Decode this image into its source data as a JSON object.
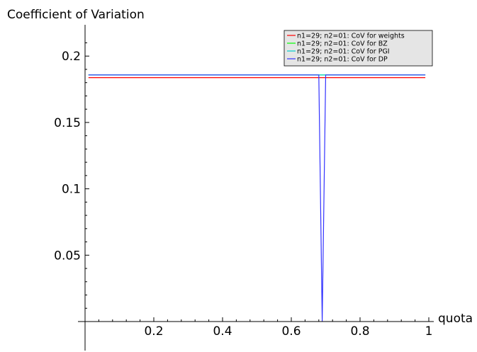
{
  "chart_data": {
    "type": "line",
    "title": "Coefficient of Variation",
    "ylabel": "Coefficient of Variation",
    "xlabel": "quota",
    "xlim": [
      0.0,
      1.0
    ],
    "ylim": [
      0.0,
      0.22
    ],
    "x_ticks": [
      0.2,
      0.4,
      0.6,
      0.8,
      1.0
    ],
    "x_tick_labels": [
      "0.2",
      "0.4",
      "0.6",
      "0.8",
      "1"
    ],
    "y_ticks": [
      0.05,
      0.1,
      0.15,
      0.2
    ],
    "y_tick_labels": [
      "0.05",
      "0.1",
      "0.15",
      "0.2"
    ],
    "grid": false,
    "legend_position": "top-right",
    "series": [
      {
        "name": "n1=29; n2=01: CoV for weights",
        "color": "#ff0000",
        "x": [
          0.01,
          0.99
        ],
        "y": [
          0.1838,
          0.1838
        ]
      },
      {
        "name": "n1=29; n2=01: CoV for BZ",
        "color": "#00ff00",
        "x": [
          0.01,
          0.99
        ],
        "y": [
          0.1858,
          0.1858
        ]
      },
      {
        "name": "n1=29; n2=01: CoV for PGI",
        "color": "#00cccc",
        "x": [
          0.01,
          0.99
        ],
        "y": [
          0.1858,
          0.1858
        ]
      },
      {
        "name": "n1=29; n2=01: CoV for DP",
        "color": "#3333ff",
        "x": [
          0.01,
          0.67,
          0.68,
          0.69,
          0.7,
          0.99
        ],
        "y": [
          0.1858,
          0.1858,
          0.1858,
          0.0,
          0.1858,
          0.1858
        ]
      }
    ]
  }
}
